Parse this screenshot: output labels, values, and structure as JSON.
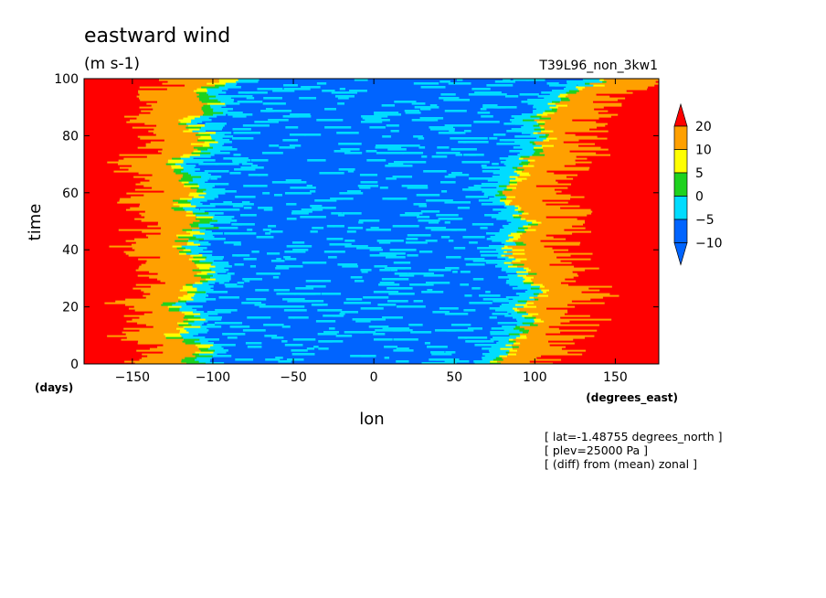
{
  "chart_data": {
    "type": "heatmap",
    "title": "eastward wind",
    "units": "(m s-1)",
    "experiment": "T39L96_non_3kw1",
    "xlabel": "lon",
    "x_units": "(degrees_east)",
    "ylabel": "time",
    "y_units": "(days)",
    "xlim": [
      -180,
      177
    ],
    "ylim": [
      0,
      100
    ],
    "x_ticks": [
      -150,
      -100,
      -50,
      0,
      50,
      100,
      150
    ],
    "y_ticks": [
      0,
      20,
      40,
      60,
      80,
      100
    ],
    "colorbar": {
      "levels": [
        -10,
        -5,
        0,
        5,
        10,
        20
      ],
      "tick_labels": [
        "-10",
        "-5",
        "0",
        "5",
        "10",
        "20"
      ],
      "colors": [
        "#0064ff",
        "#00dcff",
        "#1ed21e",
        "#ffff00",
        "#ffa000",
        "#ff0000"
      ],
      "extend": "both"
    },
    "background_color": "#0064ff",
    "annotations": [
      "[ lat=-1.48755 degrees_north ]",
      "[ plev=25000 Pa ]",
      "[ (diff) from (mean) zonal ]"
    ],
    "description_west_boundary_lon_by_time": {
      "time": [
        0,
        5,
        10,
        15,
        20,
        25,
        30,
        35,
        40,
        45,
        50,
        55,
        60,
        65,
        70,
        75,
        80,
        85,
        90,
        95,
        100
      ],
      "lon": [
        -118,
        -110,
        -128,
        -115,
        -130,
        -118,
        -108,
        -112,
        -122,
        -118,
        -108,
        -126,
        -112,
        -118,
        -132,
        -108,
        -112,
        -118,
        -102,
        -110,
        -96
      ]
    },
    "description_east_boundary_lon_by_time": {
      "time": [
        0,
        5,
        10,
        15,
        20,
        25,
        30,
        35,
        40,
        45,
        50,
        55,
        60,
        65,
        70,
        75,
        80,
        85,
        90,
        95,
        100
      ],
      "lon": [
        74,
        82,
        88,
        96,
        90,
        102,
        94,
        86,
        82,
        88,
        94,
        84,
        78,
        86,
        92,
        98,
        104,
        96,
        108,
        120,
        146
      ]
    }
  }
}
